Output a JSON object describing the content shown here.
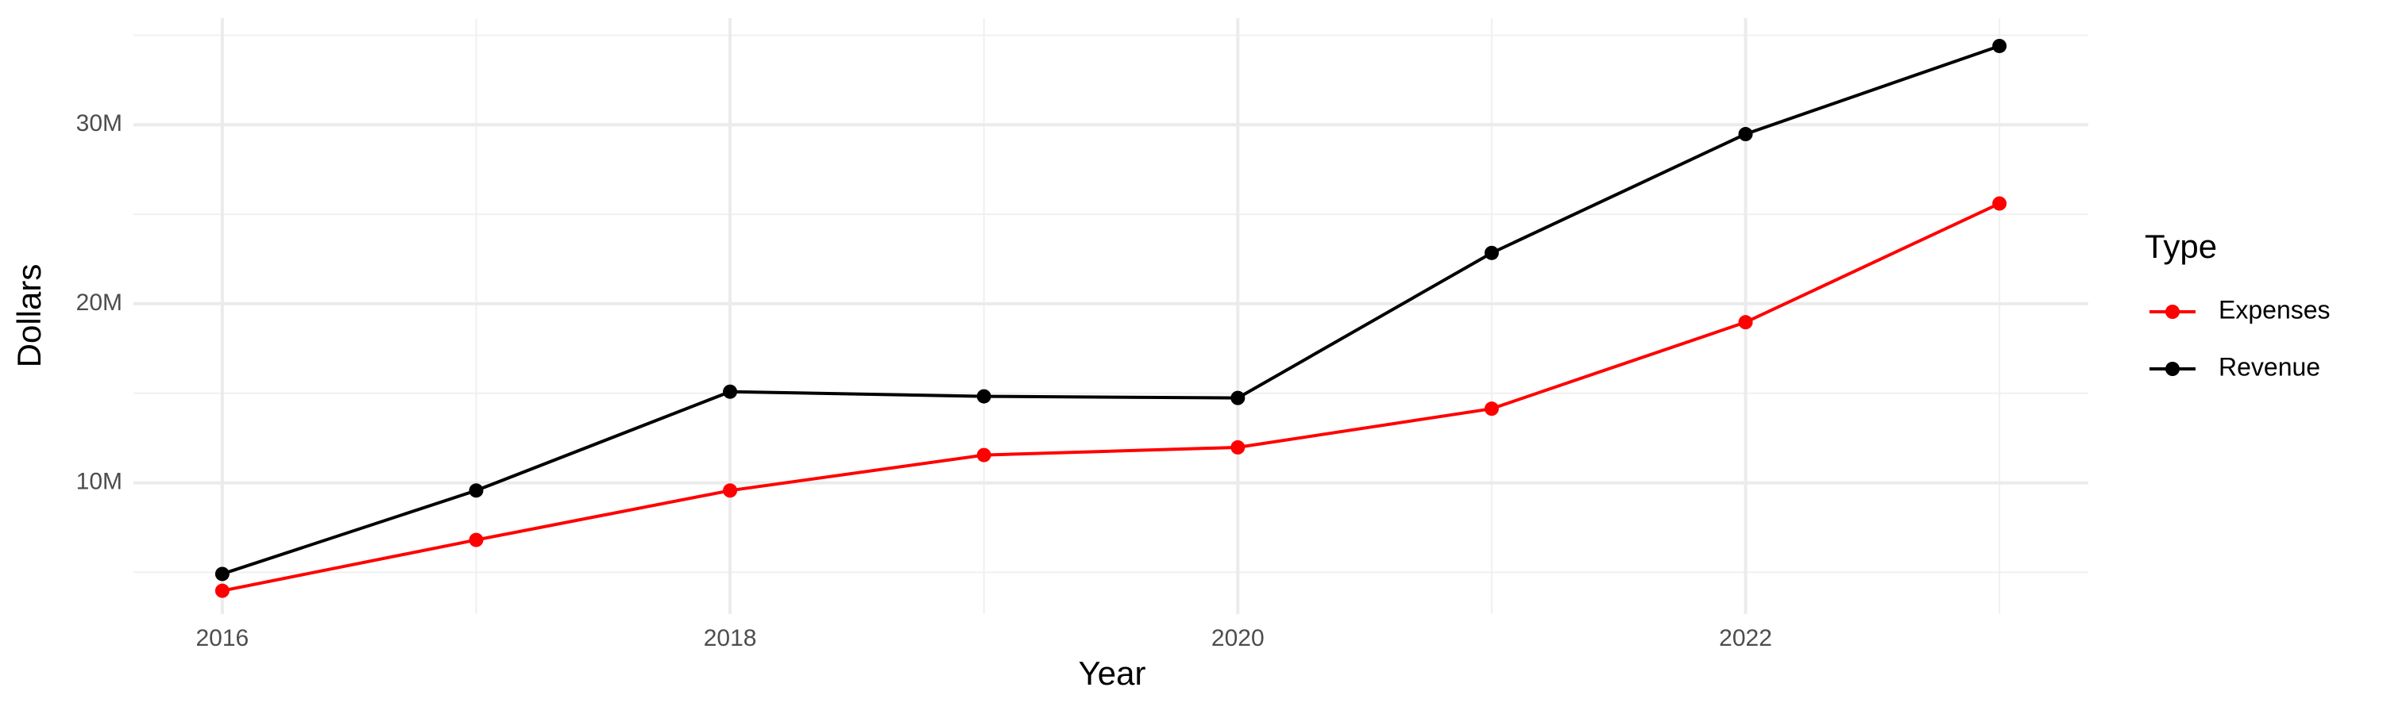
{
  "chart_data": {
    "type": "line",
    "x_label": "Year",
    "y_label": "Dollars",
    "legend_title": "Type",
    "legend_position": "right",
    "x": [
      2016,
      2017,
      2018,
      2019,
      2020,
      2021,
      2022,
      2023
    ],
    "series": [
      {
        "name": "Expenses",
        "color": "#ff0000",
        "values": [
          3970000,
          6810000,
          9570000,
          11550000,
          11980000,
          14140000,
          18970000,
          25600000
        ]
      },
      {
        "name": "Revenue",
        "color": "#000000",
        "values": [
          4910000,
          9570000,
          15090000,
          14830000,
          14740000,
          22840000,
          29480000,
          34400000
        ]
      }
    ],
    "xlim": [
      2015.65,
      2023.35
    ],
    "xticks": [
      2016,
      2018,
      2020,
      2022
    ],
    "ylim": [
      2670000,
      35950000
    ],
    "yticks": [
      {
        "value": 10000000,
        "label": "10M"
      },
      {
        "value": 20000000,
        "label": "20M"
      },
      {
        "value": 30000000,
        "label": "30M"
      }
    ],
    "grid": true,
    "minor_grid": true
  }
}
